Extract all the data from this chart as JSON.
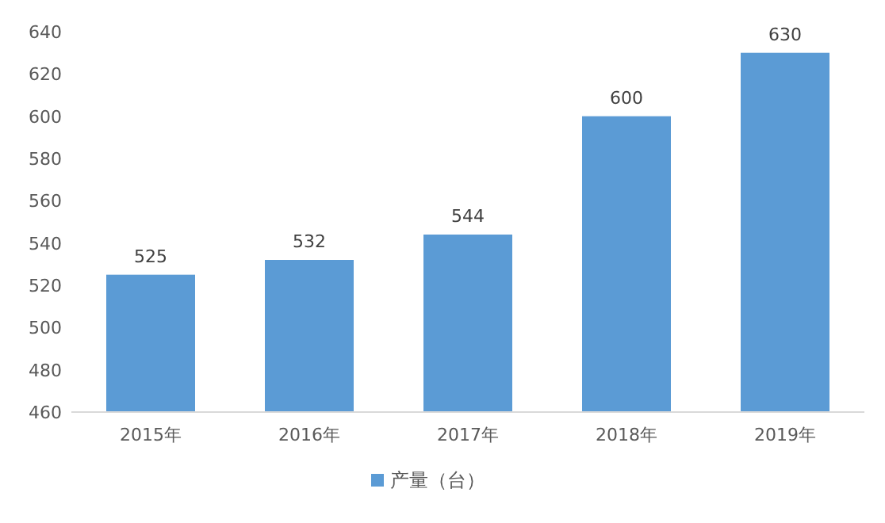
{
  "chart_data": {
    "type": "bar",
    "categories": [
      "2015年",
      "2016年",
      "2017年",
      "2018年",
      "2019年"
    ],
    "series": [
      {
        "name": "产量（台）",
        "color": "#5b9bd5",
        "values": [
          525,
          532,
          544,
          600,
          630
        ]
      }
    ],
    "ylim": [
      460,
      640
    ],
    "yticks": [
      460,
      480,
      500,
      520,
      540,
      560,
      580,
      600,
      620,
      640
    ],
    "data_labels": true,
    "legend": "bottom"
  }
}
